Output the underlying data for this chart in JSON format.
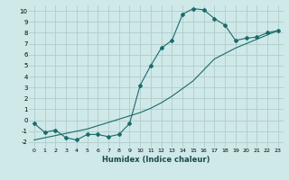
{
  "title": "",
  "xlabel": "Humidex (Indice chaleur)",
  "ylabel": "",
  "background_color": "#cfe8e8",
  "grid_color": "#b0cccc",
  "line_color": "#1a6b6b",
  "x_ticks": [
    0,
    1,
    2,
    3,
    4,
    5,
    6,
    7,
    8,
    9,
    10,
    11,
    12,
    13,
    14,
    15,
    16,
    17,
    18,
    19,
    20,
    21,
    22,
    23
  ],
  "ylim": [
    -2.5,
    10.5
  ],
  "xlim": [
    -0.5,
    23.5
  ],
  "curve1_x": [
    0,
    1,
    2,
    3,
    4,
    5,
    6,
    7,
    8,
    9,
    10,
    11,
    12,
    13,
    14,
    15,
    16,
    17,
    18,
    19,
    20,
    21,
    22,
    23
  ],
  "curve1_y": [
    -0.3,
    -1.1,
    -0.9,
    -1.6,
    -1.8,
    -1.3,
    -1.3,
    -1.5,
    -1.3,
    -0.3,
    3.2,
    5.0,
    6.6,
    7.3,
    9.7,
    10.2,
    10.1,
    9.3,
    8.7,
    7.3,
    7.5,
    7.6,
    8.0,
    8.2
  ],
  "curve2_x": [
    0,
    1,
    2,
    3,
    4,
    5,
    6,
    7,
    8,
    9,
    10,
    11,
    12,
    13,
    14,
    15,
    16,
    17,
    18,
    19,
    20,
    21,
    22,
    23
  ],
  "curve2_y": [
    -1.8,
    -1.6,
    -1.4,
    -1.2,
    -1.0,
    -0.8,
    -0.5,
    -0.2,
    0.1,
    0.4,
    0.7,
    1.1,
    1.6,
    2.2,
    2.9,
    3.6,
    4.6,
    5.6,
    6.1,
    6.6,
    7.0,
    7.4,
    7.8,
    8.2
  ],
  "ytick_labels": [
    "-2",
    "-1",
    "0",
    "1",
    "2",
    "3",
    "4",
    "5",
    "6",
    "7",
    "8",
    "9",
    "10"
  ],
  "ytick_values": [
    -2,
    -1,
    0,
    1,
    2,
    3,
    4,
    5,
    6,
    7,
    8,
    9,
    10
  ]
}
